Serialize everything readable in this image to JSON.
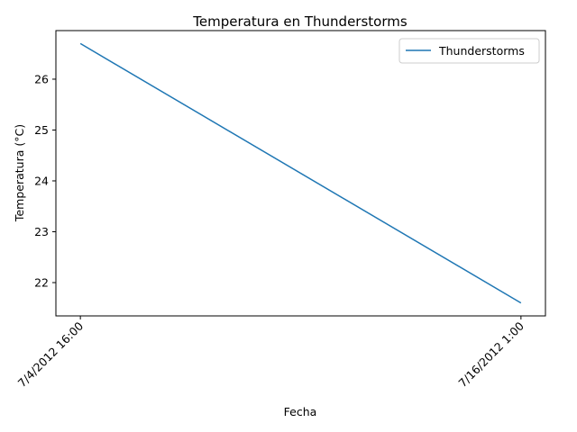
{
  "chart_data": {
    "type": "line",
    "title": "Temperatura en Thunderstorms",
    "xlabel": "Fecha",
    "ylabel": "Temperatura (°C)",
    "categories": [
      "7/4/2012 16:00",
      "7/16/2012 1:00"
    ],
    "series": [
      {
        "name": "Thunderstorms",
        "values": [
          26.7,
          21.6
        ],
        "color": "#1f77b4"
      }
    ],
    "yticks": [
      22,
      23,
      24,
      25,
      26
    ],
    "ylim": [
      21.345,
      26.955
    ],
    "grid": false,
    "legend": "top-right"
  }
}
